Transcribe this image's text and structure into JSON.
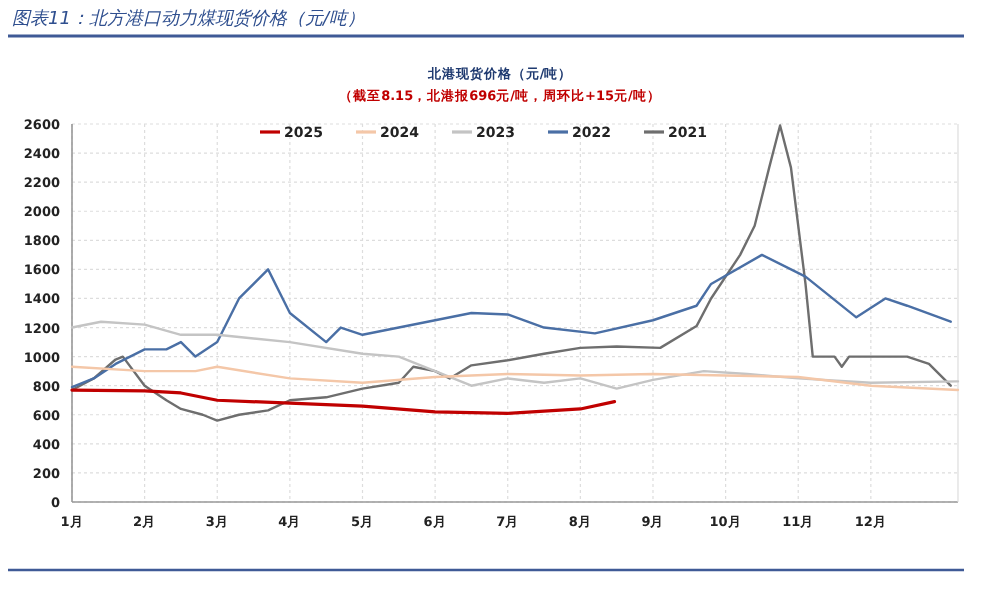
{
  "chart_data": {
    "type": "line",
    "title": "图表11：北方港口动力煤现货价格（元/吨）",
    "subtitle": "北港现货价格（元/吨）",
    "annotations": [
      "（截至8.15，北港报696元/吨，周环比+15元/吨）"
    ],
    "xlim": [
      1,
      13.2
    ],
    "xticks": [
      {
        "value": 1,
        "label": "1月"
      },
      {
        "value": 2,
        "label": "2月"
      },
      {
        "value": 3,
        "label": "3月"
      },
      {
        "value": 4,
        "label": "4月"
      },
      {
        "value": 5,
        "label": "5月"
      },
      {
        "value": 6,
        "label": "6月"
      },
      {
        "value": 7,
        "label": "7月"
      },
      {
        "value": 8,
        "label": "8月"
      },
      {
        "value": 9,
        "label": "9月"
      },
      {
        "value": 10,
        "label": "10月"
      },
      {
        "value": 11,
        "label": "11月"
      },
      {
        "value": 12,
        "label": "12月"
      }
    ],
    "ylim": [
      0,
      2600
    ],
    "yticks": [
      0,
      200,
      400,
      600,
      800,
      1000,
      1200,
      1400,
      1600,
      1800,
      2000,
      2200,
      2400,
      2600
    ],
    "grid": true,
    "legend": "top",
    "marker": "none",
    "line_style": "solid",
    "series": [
      {
        "name": "2025",
        "color": "#c00000",
        "x": [
          1,
          2,
          2.5,
          3,
          4,
          5,
          6,
          7,
          8,
          8.47
        ],
        "values": [
          770,
          765,
          750,
          700,
          680,
          660,
          620,
          610,
          640,
          690
        ]
      },
      {
        "name": "2024",
        "color": "#f4c7a8",
        "x": [
          1,
          2,
          2.7,
          3,
          4,
          5,
          6,
          7,
          8,
          9,
          10,
          11,
          12,
          13.2
        ],
        "values": [
          930,
          900,
          900,
          930,
          850,
          820,
          860,
          880,
          870,
          880,
          870,
          860,
          800,
          770
        ]
      },
      {
        "name": "2023",
        "color": "#c4c4c4",
        "x": [
          1,
          1.4,
          2,
          2.5,
          3,
          4,
          5,
          5.5,
          6,
          6.5,
          7,
          7.5,
          8,
          8.5,
          9,
          9.7,
          10.3,
          11,
          12,
          13.2
        ],
        "values": [
          1200,
          1240,
          1220,
          1150,
          1150,
          1100,
          1020,
          1000,
          900,
          800,
          850,
          820,
          850,
          780,
          840,
          900,
          880,
          850,
          820,
          830
        ]
      },
      {
        "name": "2022",
        "color": "#4a6fa5",
        "x": [
          1,
          1.3,
          1.6,
          2,
          2.3,
          2.5,
          2.7,
          3,
          3.3,
          3.7,
          4,
          4.5,
          4.7,
          5,
          5.5,
          6,
          6.5,
          7,
          7.5,
          8.2,
          9,
          9.6,
          9.8,
          10.5,
          11.1,
          11.8,
          12.2,
          12.5,
          13.1
        ],
        "values": [
          790,
          850,
          950,
          1050,
          1050,
          1100,
          1000,
          1100,
          1400,
          1600,
          1300,
          1100,
          1200,
          1150,
          1200,
          1250,
          1300,
          1290,
          1200,
          1160,
          1250,
          1350,
          1500,
          1700,
          1550,
          1270,
          1400,
          1350,
          1240
        ]
      },
      {
        "name": "2021",
        "color": "#6e6e6e",
        "x": [
          1,
          1.3,
          1.6,
          1.7,
          2,
          2.3,
          2.5,
          2.8,
          3,
          3.3,
          3.7,
          4,
          4.5,
          5,
          5.5,
          5.7,
          6,
          6.2,
          6.5,
          7,
          7.5,
          8,
          8.5,
          9.1,
          9.6,
          9.8,
          10.2,
          10.4,
          10.6,
          10.75,
          10.9,
          11.1,
          11.2,
          11.5,
          11.6,
          11.7,
          12.5,
          12.8,
          13.1
        ],
        "values": [
          770,
          850,
          980,
          1000,
          800,
          700,
          640,
          600,
          560,
          600,
          630,
          700,
          720,
          780,
          820,
          930,
          900,
          850,
          940,
          975,
          1020,
          1060,
          1070,
          1060,
          1210,
          1400,
          1700,
          1900,
          2300,
          2590,
          2300,
          1500,
          1000,
          1000,
          930,
          1000,
          1000,
          950,
          800
        ]
      }
    ]
  }
}
